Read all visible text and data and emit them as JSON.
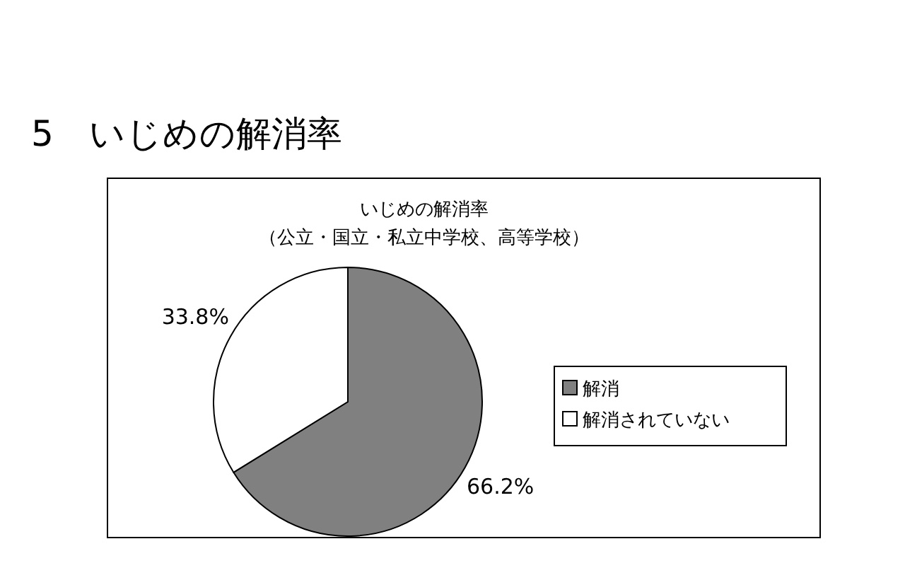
{
  "chart_data": {
    "type": "pie",
    "title": "いじめの解消率",
    "subtitle": "（公立・国立・私立中学校、高等学校）",
    "annotations": [
      "5　いじめの解消率"
    ],
    "categories": [
      "解消",
      "解消されていない"
    ],
    "values": [
      66.2,
      33.8
    ],
    "colors": [
      "#808080",
      "#ffffff"
    ],
    "value_labels": [
      "66.2%",
      "33.8%"
    ],
    "legend": "right"
  }
}
